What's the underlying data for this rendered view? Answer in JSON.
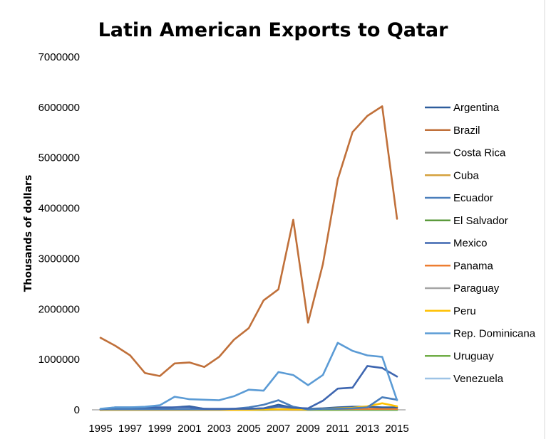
{
  "chart_data": {
    "type": "line",
    "title": "Latin American Exports to Qatar",
    "xlabel": "",
    "ylabel": "Thousands of dollars",
    "x": [
      1995,
      1996,
      1997,
      1998,
      1999,
      2000,
      2001,
      2002,
      2003,
      2004,
      2005,
      2006,
      2007,
      2008,
      2009,
      2010,
      2011,
      2012,
      2013,
      2014,
      2015
    ],
    "x_tick_labels": [
      "1995",
      "1997",
      "1999",
      "2001",
      "2003",
      "2005",
      "2007",
      "2009",
      "2011",
      "2013",
      "2015"
    ],
    "y_tick_labels": [
      "0",
      "1000000",
      "2000000",
      "3000000",
      "4000000",
      "5000000",
      "6000000",
      "7000000"
    ],
    "ylim": [
      0,
      7000000
    ],
    "grid": "none",
    "legend_position": "right",
    "series": [
      {
        "name": "Argentina",
        "color": "#2E5D9C",
        "values": [
          10000,
          20000,
          20000,
          20000,
          30000,
          50000,
          70000,
          20000,
          10000,
          20000,
          20000,
          30000,
          100000,
          40000,
          20000,
          30000,
          50000,
          60000,
          60000,
          50000,
          50000
        ]
      },
      {
        "name": "Brazil",
        "color": "#C0703A",
        "values": [
          1430000,
          1270000,
          1080000,
          730000,
          670000,
          920000,
          940000,
          850000,
          1050000,
          1390000,
          1620000,
          2170000,
          2390000,
          3770000,
          1730000,
          2890000,
          4570000,
          5510000,
          5830000,
          6020000,
          3790000
        ]
      },
      {
        "name": "Costa Rica",
        "color": "#8A8A8A",
        "values": [
          0,
          0,
          0,
          0,
          0,
          0,
          0,
          0,
          0,
          0,
          0,
          0,
          0,
          0,
          0,
          0,
          0,
          0,
          0,
          0,
          0
        ]
      },
      {
        "name": "Cuba",
        "color": "#D4A13C",
        "values": [
          0,
          0,
          0,
          0,
          0,
          0,
          0,
          0,
          0,
          0,
          0,
          0,
          10000,
          0,
          0,
          0,
          0,
          10000,
          10000,
          10000,
          10000
        ]
      },
      {
        "name": "Ecuador",
        "color": "#4A7EBB",
        "values": [
          10000,
          10000,
          10000,
          10000,
          10000,
          10000,
          10000,
          10000,
          10000,
          20000,
          50000,
          100000,
          190000,
          60000,
          10000,
          20000,
          20000,
          30000,
          50000,
          250000,
          200000
        ]
      },
      {
        "name": "El Salvador",
        "color": "#5B9A3C",
        "values": [
          0,
          0,
          0,
          0,
          0,
          0,
          0,
          0,
          0,
          0,
          0,
          0,
          0,
          0,
          0,
          0,
          0,
          0,
          0,
          0,
          0
        ]
      },
      {
        "name": "Mexico",
        "color": "#3E66B0",
        "values": [
          10000,
          50000,
          50000,
          50000,
          50000,
          50000,
          50000,
          20000,
          20000,
          20000,
          20000,
          30000,
          60000,
          40000,
          30000,
          180000,
          420000,
          440000,
          870000,
          830000,
          660000
        ]
      },
      {
        "name": "Panama",
        "color": "#ED7D31",
        "values": [
          0,
          0,
          0,
          0,
          0,
          0,
          0,
          0,
          0,
          0,
          10000,
          10000,
          10000,
          10000,
          10000,
          30000,
          20000,
          20000,
          20000,
          20000,
          20000
        ]
      },
      {
        "name": "Paraguay",
        "color": "#A5A5A5",
        "values": [
          0,
          0,
          0,
          0,
          0,
          0,
          0,
          0,
          0,
          0,
          0,
          0,
          0,
          0,
          0,
          0,
          0,
          0,
          0,
          0,
          0
        ]
      },
      {
        "name": "Peru",
        "color": "#FFC000",
        "values": [
          0,
          0,
          0,
          0,
          0,
          0,
          0,
          0,
          0,
          0,
          0,
          10000,
          10000,
          10000,
          10000,
          20000,
          30000,
          40000,
          70000,
          130000,
          70000
        ]
      },
      {
        "name": "Rep. Dominicana",
        "color": "#5B9BD5",
        "values": [
          20000,
          50000,
          50000,
          60000,
          90000,
          260000,
          210000,
          200000,
          190000,
          270000,
          400000,
          380000,
          750000,
          690000,
          490000,
          690000,
          1330000,
          1170000,
          1080000,
          1050000,
          190000
        ]
      },
      {
        "name": "Uruguay",
        "color": "#70AD47",
        "values": [
          0,
          0,
          0,
          0,
          0,
          0,
          0,
          0,
          0,
          0,
          0,
          0,
          10000,
          10000,
          0,
          0,
          0,
          0,
          0,
          0,
          0
        ]
      },
      {
        "name": "Venezuela",
        "color": "#9DC3E6",
        "values": [
          0,
          0,
          0,
          0,
          0,
          0,
          0,
          0,
          0,
          0,
          0,
          0,
          0,
          0,
          0,
          0,
          0,
          0,
          0,
          0,
          0
        ]
      }
    ]
  }
}
